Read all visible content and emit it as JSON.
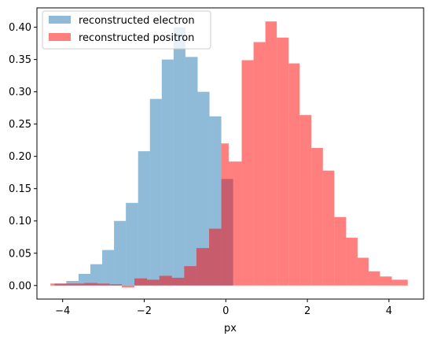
{
  "chart_data": {
    "type": "histogram",
    "xlabel": "px",
    "ylabel": "",
    "xlim": [
      -4.63,
      4.85
    ],
    "ylim": [
      -0.021,
      0.43
    ],
    "xticks": [
      -4,
      -2,
      0,
      2,
      4
    ],
    "xtick_labels": [
      "−4",
      "−2",
      "0",
      "2",
      "4"
    ],
    "yticks": [
      0.0,
      0.05,
      0.1,
      0.15,
      0.2,
      0.25,
      0.3,
      0.35,
      0.4
    ],
    "ytick_labels": [
      "0.00",
      "0.05",
      "0.10",
      "0.15",
      "0.20",
      "0.25",
      "0.30",
      "0.35",
      "0.40"
    ],
    "grid": false,
    "legend_position": "upper-left",
    "series": [
      {
        "name": "reconstructed electron",
        "color": "#1f77b4",
        "alpha": 0.5,
        "bin_edges": [
          -4.2,
          -3.91,
          -3.61,
          -3.32,
          -3.03,
          -2.74,
          -2.45,
          -2.15,
          -1.86,
          -1.57,
          -1.28,
          -0.99,
          -0.69,
          -0.4,
          -0.11,
          0.18
        ],
        "values": [
          0.003,
          0.007,
          0.018,
          0.033,
          0.055,
          0.1,
          0.128,
          0.208,
          0.289,
          0.35,
          0.4,
          0.354,
          0.3,
          0.262,
          0.165
        ]
      },
      {
        "name": "reconstructed positron",
        "color": "#ff0000",
        "alpha": 0.5,
        "bin_edges": [
          -4.3,
          -3.47,
          -3.15,
          -2.85,
          -2.55,
          -2.24,
          -1.93,
          -1.63,
          -1.32,
          -1.02,
          -0.72,
          -0.41,
          -0.11,
          0.07,
          0.39,
          0.68,
          0.97,
          1.25,
          1.54,
          1.81,
          2.1,
          2.38,
          2.66,
          2.95,
          3.23,
          3.5,
          3.78,
          4.07,
          4.46
        ],
        "values": [
          0.003,
          0.004,
          0.003,
          0.002,
          -0.003,
          0.011,
          0.009,
          0.015,
          0.012,
          0.03,
          0.058,
          0.088,
          0.22,
          0.192,
          0.349,
          0.377,
          0.409,
          0.384,
          0.344,
          0.264,
          0.213,
          0.178,
          0.106,
          0.074,
          0.043,
          0.022,
          0.014,
          0.009
        ]
      }
    ]
  }
}
